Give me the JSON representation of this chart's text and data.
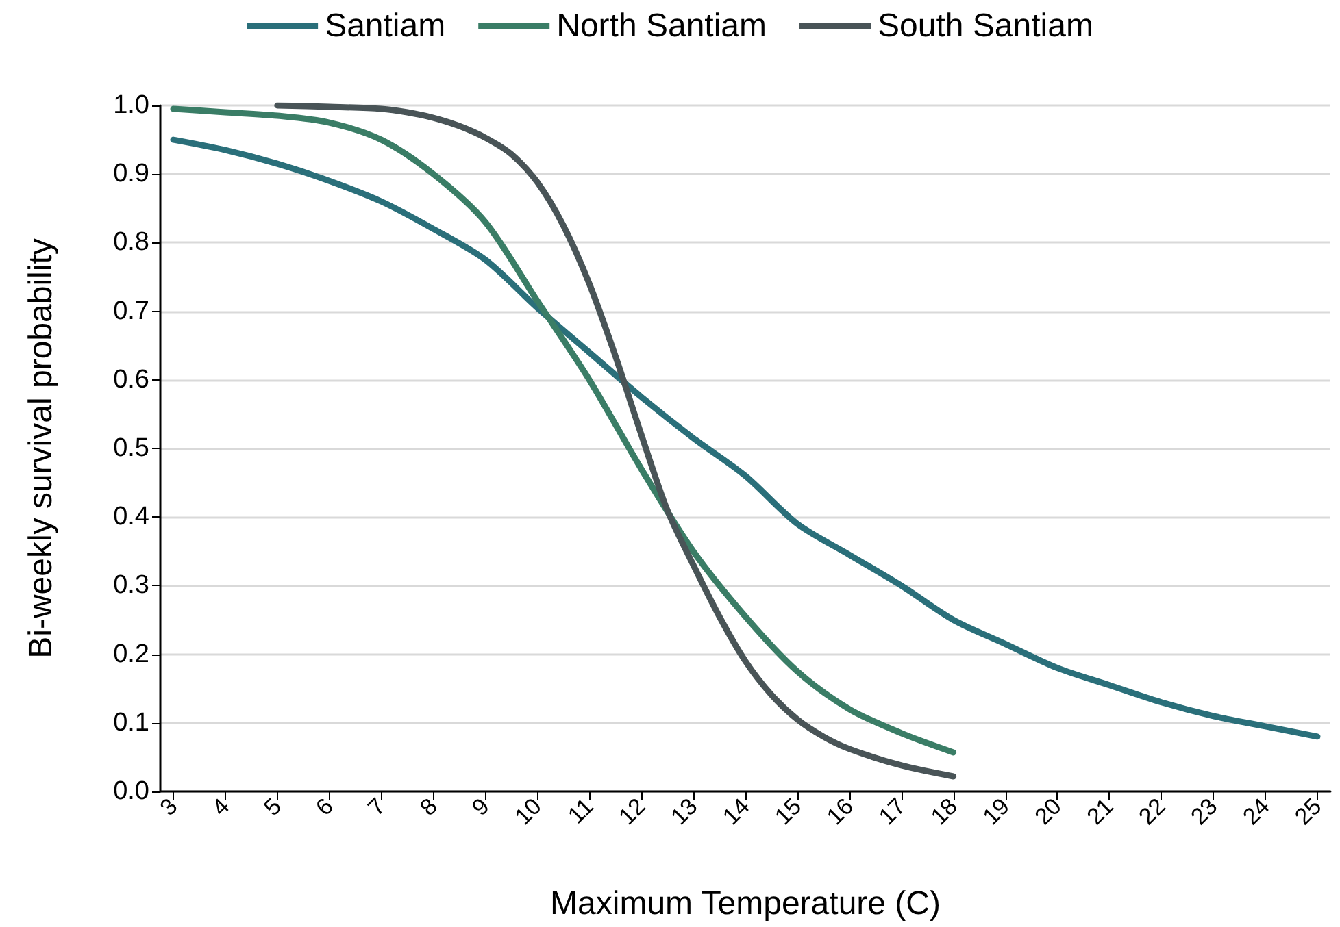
{
  "chart_data": {
    "type": "line",
    "xlabel": "Maximum Temperature (C)",
    "ylabel": "Bi-weekly survival probability",
    "legend": "top",
    "grid": "y",
    "marker": "none",
    "line_style": "solid",
    "xlim": [
      2.75,
      25.25
    ],
    "xticks": [
      3,
      4,
      5,
      6,
      7,
      8,
      9,
      10,
      11,
      12,
      13,
      14,
      15,
      16,
      17,
      18,
      19,
      20,
      21,
      22,
      23,
      24,
      25
    ],
    "ylim": [
      0,
      1
    ],
    "yticks": [
      {
        "value": 0,
        "label": "0.0"
      },
      {
        "value": 0.1,
        "label": "0.1"
      },
      {
        "value": 0.2,
        "label": "0.2"
      },
      {
        "value": 0.3,
        "label": "0.3"
      },
      {
        "value": 0.4,
        "label": "0.4"
      },
      {
        "value": 0.5,
        "label": "0.5"
      },
      {
        "value": 0.6,
        "label": "0.6"
      },
      {
        "value": 0.7,
        "label": "0.7"
      },
      {
        "value": 0.8,
        "label": "0.8"
      },
      {
        "value": 0.9,
        "label": "0.9"
      },
      {
        "value": 1,
        "label": "1.0"
      }
    ],
    "series": [
      {
        "name": "Santiam",
        "color": "#2a6f7a",
        "x": [
          3,
          4,
          5,
          6,
          7,
          8,
          9,
          10,
          11,
          12,
          13,
          14,
          15,
          16,
          17,
          18,
          19,
          20,
          21,
          22,
          23,
          24,
          25
        ],
        "values": [
          0.95,
          0.935,
          0.915,
          0.89,
          0.86,
          0.82,
          0.775,
          0.705,
          0.64,
          0.575,
          0.515,
          0.46,
          0.39,
          0.345,
          0.3,
          0.25,
          0.215,
          0.18,
          0.155,
          0.13,
          0.11,
          0.095,
          0.08
        ]
      },
      {
        "name": "North Santiam",
        "color": "#3a7d66",
        "x": [
          3,
          4,
          5,
          6,
          7,
          8,
          9,
          10,
          11,
          12,
          13,
          14,
          15,
          16,
          17,
          18
        ],
        "values": [
          0.995,
          0.99,
          0.985,
          0.975,
          0.95,
          0.9,
          0.83,
          0.715,
          0.6,
          0.47,
          0.35,
          0.255,
          0.175,
          0.12,
          0.085,
          0.057
        ]
      },
      {
        "name": "South Santiam",
        "color": "#495457",
        "x": [
          5,
          6,
          7,
          7.5,
          8,
          8.5,
          9,
          9.5,
          10,
          10.5,
          11,
          11.5,
          12,
          12.5,
          13,
          13.5,
          14,
          14.5,
          15,
          15.5,
          16,
          17,
          18
        ],
        "values": [
          1,
          0.998,
          0.995,
          0.99,
          0.982,
          0.97,
          0.953,
          0.929,
          0.888,
          0.825,
          0.74,
          0.635,
          0.52,
          0.41,
          0.33,
          0.255,
          0.19,
          0.141,
          0.105,
          0.08,
          0.062,
          0.038,
          0.022
        ]
      }
    ]
  }
}
